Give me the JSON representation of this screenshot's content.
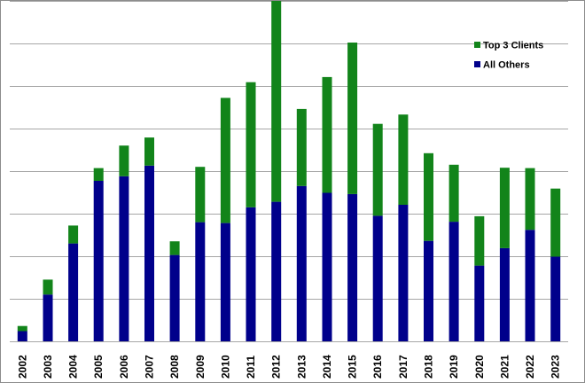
{
  "chart_data": {
    "type": "bar",
    "stacked": true,
    "categories": [
      "2002",
      "2003",
      "2004",
      "2005",
      "2006",
      "2007",
      "2008",
      "2009",
      "2010",
      "2011",
      "2012",
      "2013",
      "2014",
      "2015",
      "2016",
      "2017",
      "2018",
      "2019",
      "2020",
      "2021",
      "2022",
      "2023"
    ],
    "series": [
      {
        "name": "All Others",
        "color": "#00008B",
        "values": [
          2.4,
          11.0,
          23.0,
          37.7,
          38.8,
          41.3,
          20.3,
          28.0,
          27.8,
          31.5,
          32.8,
          36.5,
          34.9,
          34.6,
          29.5,
          32.1,
          23.6,
          28.1,
          17.8,
          21.9,
          26.2,
          19.9
        ]
      },
      {
        "name": "Top 3 Clients",
        "color": "#12841A",
        "values": [
          1.2,
          3.5,
          4.2,
          3.0,
          7.2,
          6.6,
          3.2,
          13.0,
          29.4,
          29.4,
          50.0,
          18.1,
          27.2,
          35.6,
          21.6,
          21.2,
          20.6,
          13.4,
          11.6,
          18.9,
          14.5,
          16.0
        ]
      }
    ],
    "ylim": [
      0,
      80
    ],
    "y_gridlines": [
      0,
      10,
      20,
      30,
      40,
      50,
      60,
      70,
      80
    ],
    "y_tick_labels_shown": false,
    "grid": true,
    "legend": {
      "position": "top-right",
      "order": [
        "Top 3 Clients",
        "All Others"
      ]
    }
  }
}
